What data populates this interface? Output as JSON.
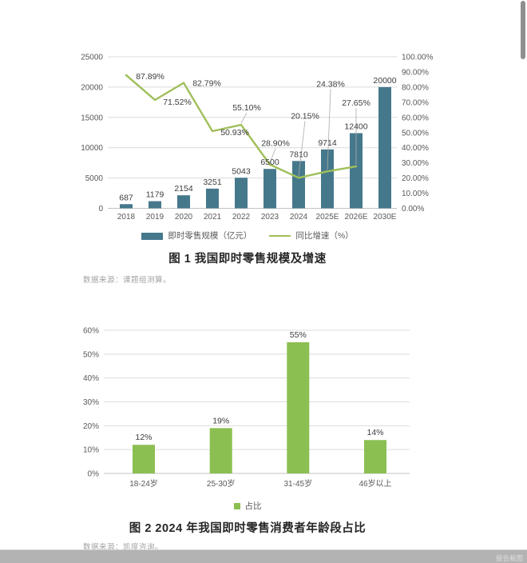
{
  "chart_data": [
    {
      "type": "bar+line",
      "title": "图 1 我国即时零售规模及增速",
      "source": "数据来源：课题组测算。",
      "categories": [
        "2018",
        "2019",
        "2020",
        "2021",
        "2022",
        "2023",
        "2024",
        "2025E",
        "2026E",
        "2030E"
      ],
      "series": [
        {
          "name": "即时零售规模（亿元）",
          "type": "bar",
          "color": "#46788c",
          "axis": "left",
          "values": [
            687,
            1179,
            2154,
            3251,
            5043,
            6500,
            7810,
            9714,
            12400,
            20000
          ],
          "value_labels": [
            "687",
            "1179",
            "2154",
            "3251",
            "5043",
            "6500",
            "7810",
            "9714",
            "12400",
            "20000"
          ]
        },
        {
          "name": "同比增速（%）",
          "type": "line",
          "color": "#a0bf5a",
          "axis": "right",
          "values": [
            87.89,
            71.52,
            82.79,
            50.93,
            55.1,
            28.9,
            20.15,
            24.38,
            27.65,
            null
          ],
          "value_labels": [
            "87.89%",
            "71.52%",
            "82.79%",
            "50.93%",
            "55.10%",
            "28.90%",
            "20.15%",
            "24.38%",
            "27.65%"
          ]
        }
      ],
      "left_axis": {
        "min": 0,
        "max": 25000,
        "tick_step": 5000,
        "ticks": [
          "0",
          "5000",
          "10000",
          "15000",
          "20000",
          "25000"
        ]
      },
      "right_axis": {
        "min": 0,
        "max": 100,
        "tick_step": 10,
        "ticks": [
          "0.00%",
          "10.00%",
          "20.00%",
          "30.00%",
          "40.00%",
          "50.00%",
          "60.00%",
          "70.00%",
          "80.00%",
          "90.00%",
          "100.00%"
        ]
      },
      "grid": true,
      "legend_position": "bottom"
    },
    {
      "type": "bar",
      "title": "图 2 2024 年我国即时零售消费者年龄段占比",
      "source": "数据来源：凯度咨询。",
      "categories": [
        "18-24岁",
        "25-30岁",
        "31-45岁",
        "46岁以上"
      ],
      "series": [
        {
          "name": "占比",
          "type": "bar",
          "color": "#8cbf52",
          "axis": "left",
          "values": [
            12,
            19,
            55,
            14
          ],
          "value_labels": [
            "12%",
            "19%",
            "55%",
            "14%"
          ]
        }
      ],
      "left_axis": {
        "min": 0,
        "max": 60,
        "tick_step": 10,
        "ticks": [
          "0%",
          "10%",
          "20%",
          "30%",
          "40%",
          "50%",
          "60%"
        ]
      },
      "grid": true,
      "legend_position": "bottom"
    }
  ],
  "footer": {
    "watermark": "报告截图"
  }
}
